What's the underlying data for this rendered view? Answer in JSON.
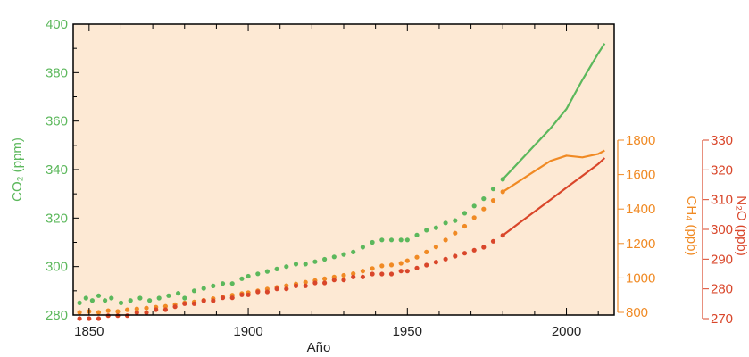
{
  "chart_data": {
    "type": "scatter",
    "xlabel": "Año",
    "x_ticks": [
      1850,
      1900,
      1950,
      2000
    ],
    "xlim": [
      1845,
      2015
    ],
    "grid": false,
    "background": "#fde9d4",
    "axes": {
      "co2": {
        "label": "CO₂ (ppm)",
        "ylim": [
          280,
          400
        ],
        "ticks": [
          280,
          300,
          320,
          340,
          360,
          380,
          400
        ],
        "color": "#5cb85c"
      },
      "ch4": {
        "label": "CH₄ (ppb)",
        "ylim": [
          800,
          1800
        ],
        "ticks": [
          800,
          1000,
          1200,
          1400,
          1600,
          1800
        ],
        "color": "#f08a24"
      },
      "n2o": {
        "label": "N₂O (ppb)",
        "ylim": [
          270,
          330
        ],
        "ticks": [
          270,
          280,
          290,
          300,
          310,
          320,
          330
        ],
        "color": "#d9462a"
      }
    },
    "series": [
      {
        "key": "co2",
        "axis": "co2",
        "color": "#5cb85c",
        "points": [
          [
            1847,
            285
          ],
          [
            1849,
            287
          ],
          [
            1851,
            286
          ],
          [
            1853,
            288
          ],
          [
            1855,
            286
          ],
          [
            1857,
            287
          ],
          [
            1860,
            285
          ],
          [
            1863,
            286
          ],
          [
            1866,
            287
          ],
          [
            1869,
            286
          ],
          [
            1872,
            287
          ],
          [
            1875,
            288
          ],
          [
            1878,
            289
          ],
          [
            1880,
            287
          ],
          [
            1883,
            290
          ],
          [
            1886,
            291
          ],
          [
            1889,
            292
          ],
          [
            1892,
            293
          ],
          [
            1895,
            293
          ],
          [
            1898,
            295
          ],
          [
            1900,
            296
          ],
          [
            1903,
            297
          ],
          [
            1906,
            298
          ],
          [
            1909,
            299
          ],
          [
            1912,
            300
          ],
          [
            1915,
            301
          ],
          [
            1918,
            301
          ],
          [
            1921,
            302
          ],
          [
            1924,
            303
          ],
          [
            1927,
            304
          ],
          [
            1930,
            305
          ],
          [
            1933,
            306
          ],
          [
            1936,
            308
          ],
          [
            1939,
            310
          ],
          [
            1942,
            311
          ],
          [
            1945,
            311
          ],
          [
            1948,
            311
          ],
          [
            1950,
            311
          ],
          [
            1953,
            313
          ],
          [
            1956,
            315
          ],
          [
            1959,
            316
          ],
          [
            1962,
            318
          ],
          [
            1965,
            319
          ],
          [
            1968,
            322
          ],
          [
            1971,
            325
          ],
          [
            1974,
            328
          ],
          [
            1977,
            332
          ],
          [
            1980,
            336
          ]
        ],
        "line": [
          [
            1980,
            336
          ],
          [
            1985,
            343
          ],
          [
            1990,
            350
          ],
          [
            1995,
            357
          ],
          [
            2000,
            365
          ],
          [
            2005,
            377
          ],
          [
            2010,
            388
          ],
          [
            2012,
            392
          ]
        ]
      },
      {
        "key": "ch4",
        "axis": "ch4",
        "color": "#f08a24",
        "points": [
          [
            1847,
            800
          ],
          [
            1850,
            805
          ],
          [
            1853,
            800
          ],
          [
            1856,
            810
          ],
          [
            1859,
            805
          ],
          [
            1862,
            815
          ],
          [
            1865,
            820
          ],
          [
            1868,
            825
          ],
          [
            1871,
            830
          ],
          [
            1874,
            835
          ],
          [
            1877,
            845
          ],
          [
            1880,
            855
          ],
          [
            1883,
            860
          ],
          [
            1886,
            870
          ],
          [
            1889,
            880
          ],
          [
            1892,
            890
          ],
          [
            1895,
            900
          ],
          [
            1898,
            910
          ],
          [
            1900,
            915
          ],
          [
            1903,
            925
          ],
          [
            1906,
            935
          ],
          [
            1909,
            945
          ],
          [
            1912,
            955
          ],
          [
            1915,
            965
          ],
          [
            1918,
            975
          ],
          [
            1921,
            985
          ],
          [
            1924,
            995
          ],
          [
            1927,
            1005
          ],
          [
            1930,
            1015
          ],
          [
            1933,
            1025
          ],
          [
            1936,
            1040
          ],
          [
            1939,
            1055
          ],
          [
            1942,
            1070
          ],
          [
            1945,
            1075
          ],
          [
            1948,
            1085
          ],
          [
            1950,
            1100
          ],
          [
            1953,
            1120
          ],
          [
            1956,
            1150
          ],
          [
            1959,
            1180
          ],
          [
            1962,
            1220
          ],
          [
            1965,
            1260
          ],
          [
            1968,
            1300
          ],
          [
            1971,
            1350
          ],
          [
            1974,
            1400
          ],
          [
            1977,
            1450
          ],
          [
            1980,
            1500
          ]
        ],
        "line": [
          [
            1980,
            1500
          ],
          [
            1985,
            1560
          ],
          [
            1990,
            1620
          ],
          [
            1995,
            1680
          ],
          [
            2000,
            1710
          ],
          [
            2005,
            1700
          ],
          [
            2010,
            1720
          ],
          [
            2012,
            1740
          ]
        ]
      },
      {
        "key": "n2o",
        "axis": "n2o",
        "color": "#d9462a",
        "points": [
          [
            1847,
            270
          ],
          [
            1850,
            270
          ],
          [
            1853,
            270
          ],
          [
            1856,
            271
          ],
          [
            1859,
            271
          ],
          [
            1862,
            271
          ],
          [
            1865,
            272
          ],
          [
            1868,
            272
          ],
          [
            1871,
            273
          ],
          [
            1874,
            273
          ],
          [
            1877,
            274
          ],
          [
            1880,
            275
          ],
          [
            1883,
            275
          ],
          [
            1886,
            276
          ],
          [
            1889,
            276
          ],
          [
            1892,
            277
          ],
          [
            1895,
            277
          ],
          [
            1898,
            278
          ],
          [
            1900,
            278
          ],
          [
            1903,
            279
          ],
          [
            1906,
            279
          ],
          [
            1909,
            280
          ],
          [
            1912,
            280
          ],
          [
            1915,
            281
          ],
          [
            1918,
            281
          ],
          [
            1921,
            282
          ],
          [
            1924,
            282
          ],
          [
            1927,
            283
          ],
          [
            1930,
            283
          ],
          [
            1933,
            284
          ],
          [
            1936,
            284
          ],
          [
            1939,
            285
          ],
          [
            1942,
            285
          ],
          [
            1945,
            285
          ],
          [
            1948,
            286
          ],
          [
            1950,
            286
          ],
          [
            1953,
            287
          ],
          [
            1956,
            288
          ],
          [
            1959,
            289
          ],
          [
            1962,
            290
          ],
          [
            1965,
            291
          ],
          [
            1968,
            292
          ],
          [
            1971,
            293
          ],
          [
            1974,
            294
          ],
          [
            1977,
            296
          ],
          [
            1980,
            298
          ]
        ],
        "line": [
          [
            1980,
            298
          ],
          [
            1985,
            302
          ],
          [
            1990,
            306
          ],
          [
            1995,
            310
          ],
          [
            2000,
            314
          ],
          [
            2005,
            318
          ],
          [
            2010,
            322
          ],
          [
            2012,
            324
          ]
        ]
      }
    ]
  }
}
